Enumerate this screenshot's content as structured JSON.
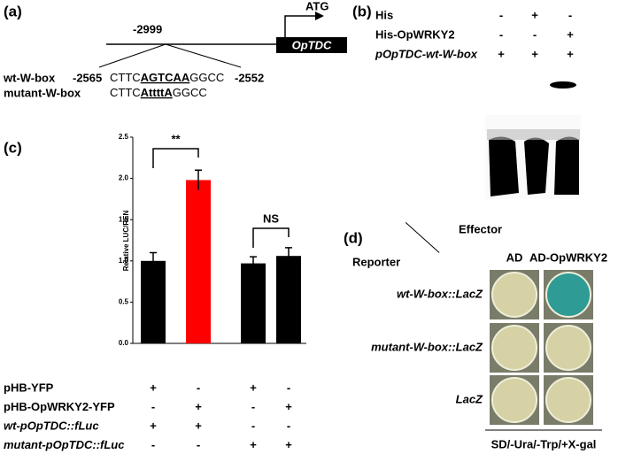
{
  "panel_a": {
    "label": "(a)",
    "position": "-2999",
    "gene": "OpTDC",
    "start_codon": "ATG",
    "rows": [
      {
        "name": "wt-W-box",
        "start": "-2565",
        "seq_left": "CTTC",
        "seq_core": "AGTCAA",
        "seq_right": "GGCC",
        "end": "-2552"
      },
      {
        "name": "mutant-W-box",
        "seq_left": "CTTC",
        "seq_core": "AttttA",
        "seq_right": "GGCC"
      }
    ]
  },
  "panel_b": {
    "label": "(b)",
    "rows": [
      {
        "name": "His",
        "lanes": [
          "-",
          "+",
          "-"
        ]
      },
      {
        "name": "His-OpWRKY2",
        "lanes": [
          "-",
          "-",
          "+"
        ]
      },
      {
        "name": "pOpTDC-wt-W-box",
        "lanes": [
          "+",
          "+",
          "+"
        ]
      }
    ]
  },
  "chart_data": {
    "type": "bar",
    "panel_label": "(c)",
    "y_label": "Relative LUC/REN",
    "values": [
      1.0,
      1.98,
      0.97,
      1.06
    ],
    "errors": [
      0.1,
      0.12,
      0.08,
      0.1
    ],
    "colors": [
      "#000000",
      "#ff0000",
      "#000000",
      "#000000"
    ],
    "ylim": [
      0,
      2.5
    ],
    "yticks": [
      {
        "value": 0,
        "label": "0.0"
      },
      {
        "value": 0.5,
        "label": "0.5"
      },
      {
        "value": 1,
        "label": "1.0"
      },
      {
        "value": 1.5,
        "label": "1.5"
      },
      {
        "value": 2,
        "label": "2.0"
      },
      {
        "value": 2.5,
        "label": "2.5"
      }
    ],
    "annotations": [
      "**",
      "NS"
    ],
    "conditions": [
      {
        "name": "pHB-YFP",
        "signs": [
          "+",
          "-",
          "+",
          "-"
        ]
      },
      {
        "name": "pHB-OpWRKY2-YFP",
        "signs": [
          "-",
          "+",
          "-",
          "+"
        ]
      },
      {
        "name": "wt-pOpTDC::fLuc",
        "signs": [
          "+",
          "+",
          "-",
          "-"
        ]
      },
      {
        "name": "mutant-pOpTDC::fLuc",
        "signs": [
          "-",
          "-",
          "+",
          "+"
        ]
      }
    ]
  },
  "panel_d": {
    "label": "(d)",
    "effector_title": "Effector",
    "reporter_title": "Reporter",
    "effectors": [
      "AD",
      "AD-OpWRKY2"
    ],
    "reporters": [
      "wt-W-box::LacZ",
      "mutant-W-box::LacZ",
      "LacZ"
    ],
    "medium": "SD/-Ura/-Trp/+X-gal"
  }
}
